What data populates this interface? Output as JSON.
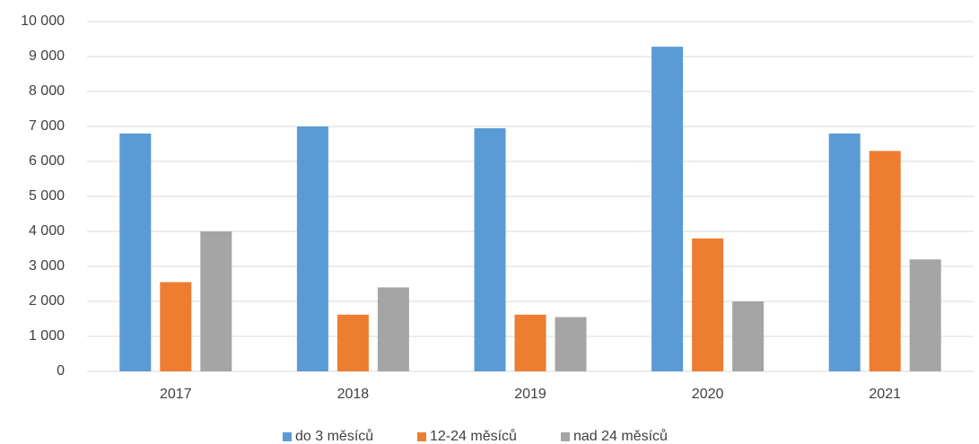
{
  "chart_data": {
    "type": "bar",
    "categories": [
      "2017",
      "2018",
      "2019",
      "2020",
      "2021"
    ],
    "series": [
      {
        "name": "do 3 měsíců",
        "color": "#5b9bd5",
        "values": [
          6800,
          7000,
          6950,
          9280,
          6800
        ]
      },
      {
        "name": "12-24 měsíců",
        "color": "#ed7d31",
        "values": [
          2550,
          1620,
          1620,
          3800,
          6300
        ]
      },
      {
        "name": "nad 24 měsíců",
        "color": "#a5a5a5",
        "values": [
          4000,
          2400,
          1550,
          2000,
          3200
        ]
      }
    ],
    "ylim": [
      0,
      10000
    ],
    "yticks": [
      0,
      {
        "value": 1000,
        "label": "1 000"
      },
      {
        "value": 2000,
        "label": "2 000"
      },
      {
        "value": 3000,
        "label": "3 000"
      },
      {
        "value": 4000,
        "label": "4 000"
      },
      {
        "value": 5000,
        "label": "5 000"
      },
      {
        "value": 6000,
        "label": "6 000"
      },
      {
        "value": 7000,
        "label": "7 000"
      },
      {
        "value": 8000,
        "label": "8 000"
      },
      {
        "value": 9000,
        "label": "9 000"
      },
      {
        "value": 10000,
        "label": "10 000"
      }
    ],
    "grid": true,
    "legend": "bottom"
  }
}
